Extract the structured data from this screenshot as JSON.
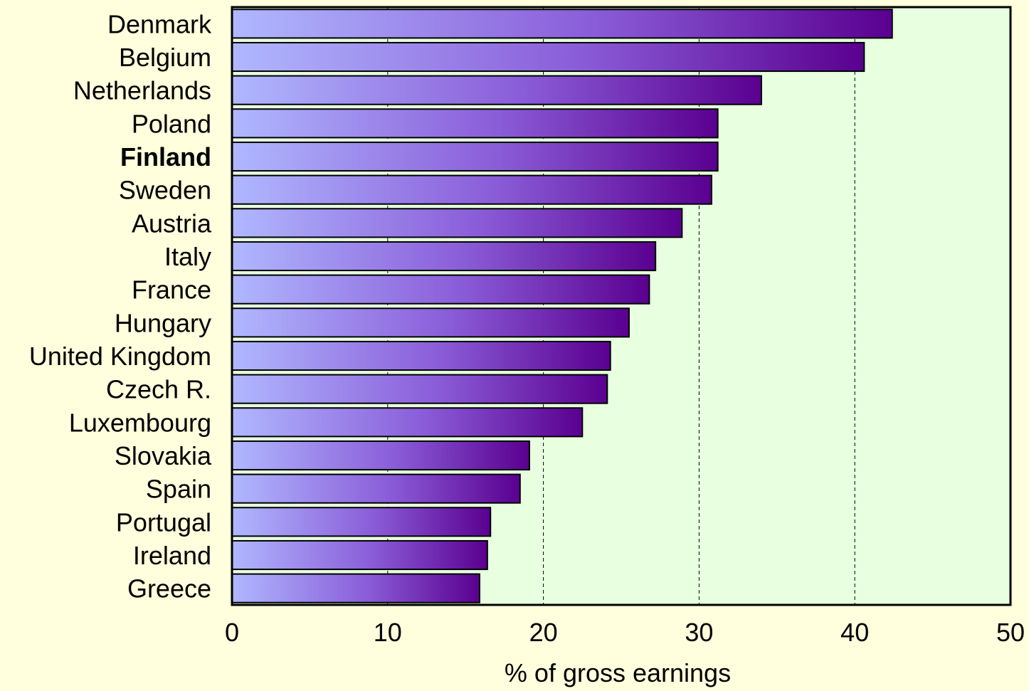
{
  "chart_data": {
    "type": "bar",
    "orientation": "horizontal",
    "categories": [
      "Denmark",
      "Belgium",
      "Netherlands",
      "Poland",
      "Finland",
      "Sweden",
      "Austria",
      "Italy",
      "France",
      "Hungary",
      "United Kingdom",
      "Czech R.",
      "Luxembourg",
      "Slovakia",
      "Spain",
      "Portugal",
      "Ireland",
      "Greece"
    ],
    "values": [
      42.4,
      40.6,
      34.0,
      31.2,
      31.2,
      30.8,
      28.9,
      27.2,
      26.8,
      25.5,
      24.3,
      24.1,
      22.5,
      19.1,
      18.5,
      16.6,
      16.4,
      15.9
    ],
    "highlight": "Finland",
    "title": "",
    "xlabel": "% of gross earnings",
    "ylabel": "",
    "xlim": [
      0,
      50
    ],
    "xticks": [
      "0",
      "10",
      "20",
      "30",
      "40",
      "50"
    ],
    "grid": "vertical dashed",
    "colors": {
      "page_background": "#FFFFDD",
      "plot_background": "#E8FFE0",
      "bar_gradient_start": "#B0B8FF",
      "bar_gradient_mid": "#8A5CD8",
      "bar_gradient_end": "#5A0090",
      "bar_outline": "#000000"
    }
  }
}
